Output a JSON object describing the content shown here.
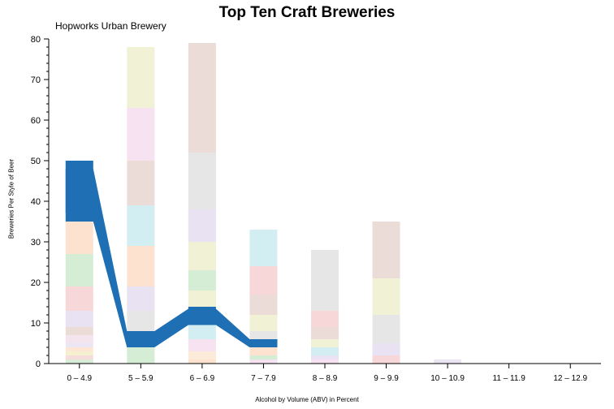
{
  "chart_data": {
    "type": "bar",
    "title": "Top Ten Craft Breweries",
    "subtitle": "Hopworks Urban Brewery",
    "xlabel": "Alcohol by Volume (ABV) in Percent",
    "ylabel": "Breweries Per Style of Beer",
    "categories": [
      "0 – 4.9",
      "5 – 5.9",
      "6 – 6.9",
      "7 – 7.9",
      "8 – 8.9",
      "9 – 9.9",
      "10 – 10.9",
      "11 – 11.9",
      "12 – 12.9"
    ],
    "ylim": [
      0,
      80
    ],
    "yticks": [
      0,
      10,
      20,
      30,
      40,
      50,
      60,
      70,
      80
    ],
    "grid": false,
    "stacks": [
      [
        {
          "value": 1,
          "color": "#d8ecd8"
        },
        {
          "value": 1,
          "color": "#f7dcdc"
        },
        {
          "value": 1,
          "color": "#f4f0d0"
        },
        {
          "value": 1,
          "color": "#fde6d4"
        },
        {
          "value": 1,
          "color": "#ece6f4"
        },
        {
          "value": 2,
          "color": "#f4e4ee"
        },
        {
          "value": 2,
          "color": "#ebdcd8"
        },
        {
          "value": 4,
          "color": "#e8e2f2"
        },
        {
          "value": 6,
          "color": "#f7d7d7"
        },
        {
          "value": 8,
          "color": "#d5ecd5"
        },
        {
          "value": 10,
          "color": "#fde2cf"
        },
        {
          "value": 13,
          "color": "#1f6fb4"
        }
      ],
      [
        {
          "value": 4,
          "color": "#d5ecd5"
        },
        {
          "value": 4,
          "color": "#1f6fb4"
        },
        {
          "value": 5,
          "color": "#e6e6e6"
        },
        {
          "value": 6,
          "color": "#e8e2f2"
        },
        {
          "value": 10,
          "color": "#fde2cf"
        },
        {
          "value": 10,
          "color": "#d3eef2"
        },
        {
          "value": 11,
          "color": "#ebdcd8"
        },
        {
          "value": 13,
          "color": "#f6e2f0"
        },
        {
          "value": 15,
          "color": "#f1f1d6"
        }
      ],
      [
        {
          "value": 1,
          "color": "#fde2cf"
        },
        {
          "value": 2,
          "color": "#fcebd9"
        },
        {
          "value": 3,
          "color": "#f6e2f0"
        },
        {
          "value": 4,
          "color": "#d3eef2"
        },
        {
          "value": 4,
          "color": "#1f6fb4"
        },
        {
          "value": 4,
          "color": "#f1f1d6"
        },
        {
          "value": 5,
          "color": "#d5ecd5"
        },
        {
          "value": 7,
          "color": "#f1f1d6"
        },
        {
          "value": 8,
          "color": "#e8e2f2"
        },
        {
          "value": 14,
          "color": "#e6e6e6"
        },
        {
          "value": 27,
          "color": "#ebdcd8"
        }
      ],
      [
        {
          "value": 1,
          "color": "#f6e2f0"
        },
        {
          "value": 1,
          "color": "#d5ecd5"
        },
        {
          "value": 2,
          "color": "#fde2cf"
        },
        {
          "value": 2,
          "color": "#1f6fb4"
        },
        {
          "value": 2,
          "color": "#e6e6e6"
        },
        {
          "value": 4,
          "color": "#f1f1d6"
        },
        {
          "value": 5,
          "color": "#ebdcd8"
        },
        {
          "value": 7,
          "color": "#f7d7d7"
        },
        {
          "value": 9,
          "color": "#d3eef2"
        }
      ],
      [
        {
          "value": 1,
          "color": "#f6e2f0"
        },
        {
          "value": 1,
          "color": "#e8e2f2"
        },
        {
          "value": 2,
          "color": "#d3eef2"
        },
        {
          "value": 2,
          "color": "#f1f1d6"
        },
        {
          "value": 3,
          "color": "#ebdcd8"
        },
        {
          "value": 4,
          "color": "#f7d7d7"
        },
        {
          "value": 15,
          "color": "#e6e6e6"
        }
      ],
      [
        {
          "value": 2,
          "color": "#f7d7d7"
        },
        {
          "value": 3,
          "color": "#e8e2f2"
        },
        {
          "value": 7,
          "color": "#e6e6e6"
        },
        {
          "value": 9,
          "color": "#f1f1d6"
        },
        {
          "value": 14,
          "color": "#ebdcd8"
        }
      ],
      [
        {
          "value": 1,
          "color": "#ece6f4"
        }
      ],
      [],
      []
    ],
    "highlight": {
      "name": "Hopworks Urban Brewery",
      "color": "#1f6fb4",
      "bands": [
        [
          35,
          48
        ],
        [
          4,
          8
        ],
        [
          9.5,
          13.5
        ],
        [
          4,
          6
        ]
      ]
    }
  }
}
